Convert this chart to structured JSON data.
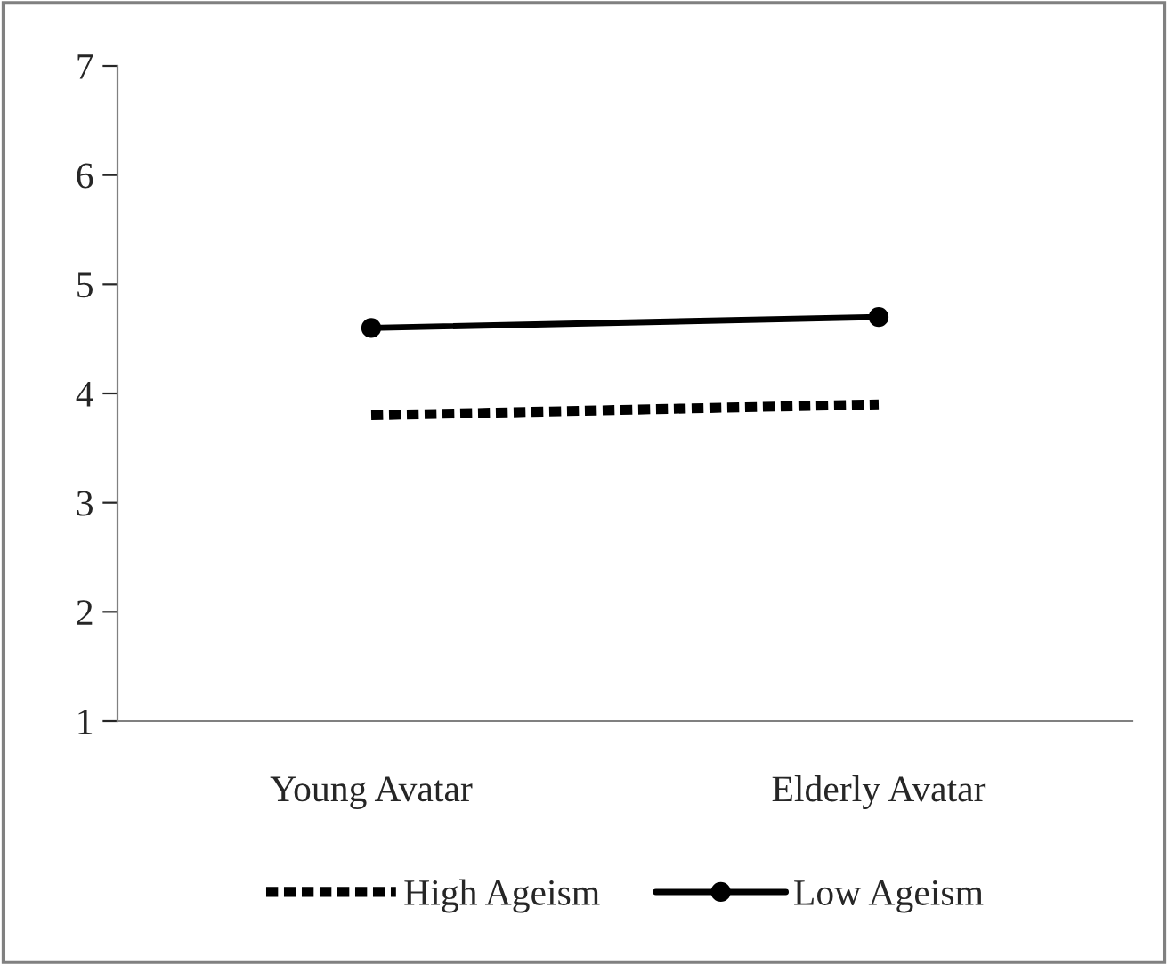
{
  "chart_data": {
    "type": "line",
    "categories": [
      "Young Avatar",
      "Elderly Avatar"
    ],
    "series": [
      {
        "name": "High Ageism",
        "color": "#000000",
        "values": [
          3.8,
          3.9
        ],
        "line_style": "dotted",
        "marker": "none"
      },
      {
        "name": "Low Ageism",
        "color": "#000000",
        "values": [
          4.6,
          4.7
        ],
        "line_style": "solid",
        "marker": "circle"
      }
    ],
    "ylim": [
      1,
      7
    ],
    "yticks": [
      1,
      2,
      3,
      4,
      5,
      6,
      7
    ],
    "grid": false,
    "legend": "bottom"
  }
}
